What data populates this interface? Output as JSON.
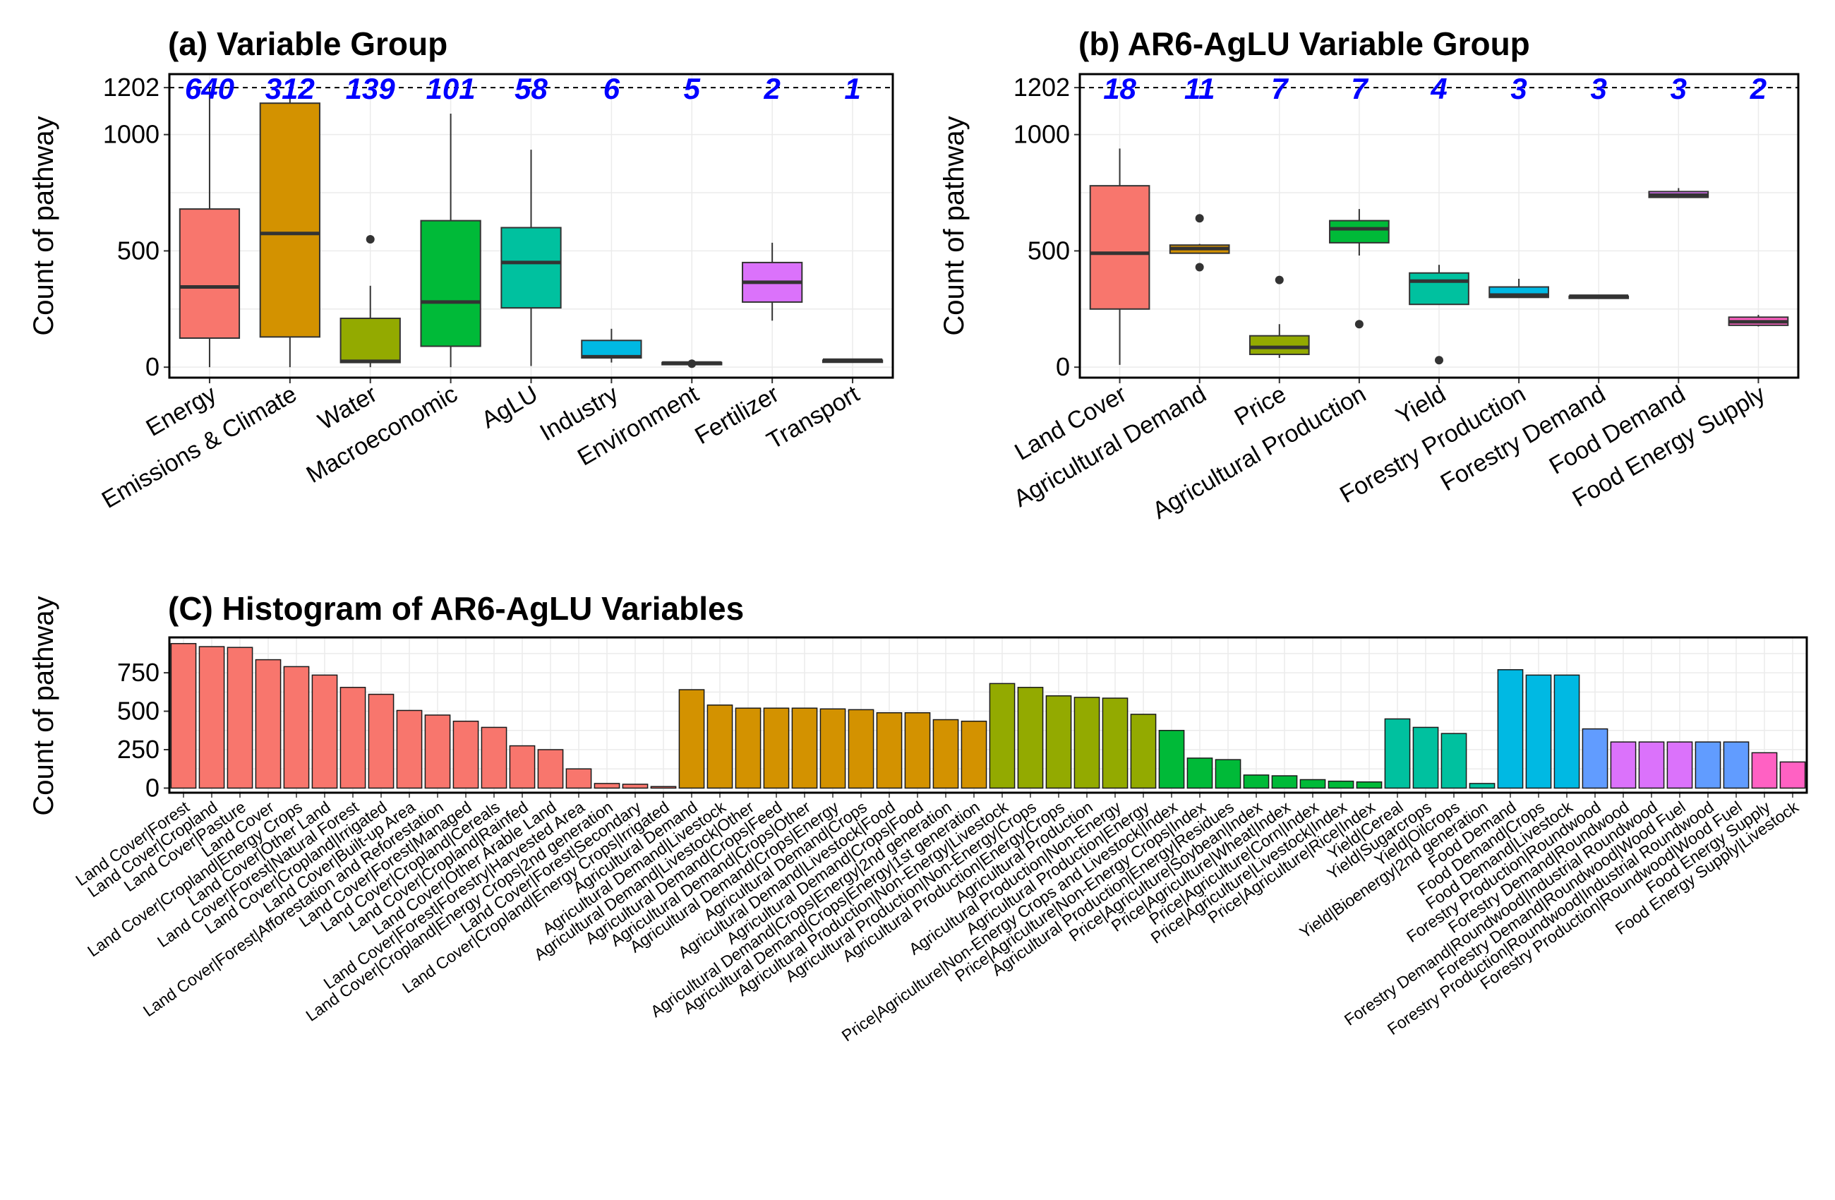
{
  "chart_data": [
    {
      "id": "a",
      "type": "box",
      "title": "(a) Variable Group",
      "ylabel": "Count of pathway",
      "ylim": [
        -45,
        1260
      ],
      "yticks": [
        0,
        500,
        1000,
        1202
      ],
      "reference_line": 1202,
      "categories": [
        "Energy",
        "Emissions & Climate",
        "Water",
        "Macroeconomic",
        "AgLU",
        "Industry",
        "Environment",
        "Fertilizer",
        "Transport"
      ],
      "counts": [
        "640",
        "312",
        "139",
        "101",
        "58",
        "6",
        "5",
        "2",
        "1"
      ],
      "colors": [
        "#F8766D",
        "#D39200",
        "#93AA00",
        "#00BA38",
        "#00C19F",
        "#00B9E3",
        "#619CFF",
        "#DB72FB",
        "#FF61C3"
      ],
      "boxes": [
        {
          "whisker_low": 0,
          "q1": 125,
          "median": 345,
          "q3": 680,
          "whisker_high": 1202,
          "outliers": []
        },
        {
          "whisker_low": 0,
          "q1": 130,
          "median": 575,
          "q3": 1135,
          "whisker_high": 1202,
          "outliers": []
        },
        {
          "whisker_low": 0,
          "q1": 20,
          "median": 25,
          "q3": 210,
          "whisker_high": 350,
          "outliers": [
            550
          ]
        },
        {
          "whisker_low": 0,
          "q1": 90,
          "median": 280,
          "q3": 630,
          "whisker_high": 1090,
          "outliers": []
        },
        {
          "whisker_low": 5,
          "q1": 255,
          "median": 450,
          "q3": 600,
          "whisker_high": 935,
          "outliers": []
        },
        {
          "whisker_low": 20,
          "q1": 40,
          "median": 45,
          "q3": 115,
          "whisker_high": 165,
          "outliers": []
        },
        {
          "whisker_low": 10,
          "q1": 15,
          "median": 18,
          "q3": 20,
          "whisker_high": 22,
          "outliers": [
            15
          ]
        },
        {
          "whisker_low": 200,
          "q1": 280,
          "median": 365,
          "q3": 450,
          "whisker_high": 535,
          "outliers": []
        },
        {
          "whisker_low": 30,
          "q1": 30,
          "median": 30,
          "q3": 30,
          "whisker_high": 30,
          "outliers": []
        }
      ]
    },
    {
      "id": "b",
      "type": "box",
      "title": "(b) AR6-AgLU Variable Group",
      "ylabel": "Count of pathway",
      "ylim": [
        -45,
        1260
      ],
      "yticks": [
        0,
        500,
        1000,
        1202
      ],
      "reference_line": 1202,
      "categories": [
        "Land Cover",
        "Agricultural Demand",
        "Price",
        "Agricultural Production",
        "Yield",
        "Forestry Production",
        "Forestry Demand",
        "Food Demand",
        "Food Energy Supply"
      ],
      "counts": [
        "18",
        "11",
        "7",
        "7",
        "4",
        "3",
        "3",
        "3",
        "2"
      ],
      "colors": [
        "#F8766D",
        "#D39200",
        "#93AA00",
        "#00BA38",
        "#00C19F",
        "#00B9E3",
        "#619CFF",
        "#DB72FB",
        "#FF61C3"
      ],
      "boxes": [
        {
          "whisker_low": 10,
          "q1": 250,
          "median": 490,
          "q3": 780,
          "whisker_high": 940,
          "outliers": []
        },
        {
          "whisker_low": 490,
          "q1": 490,
          "median": 510,
          "q3": 525,
          "whisker_high": 530,
          "outliers": [
            640,
            430
          ]
        },
        {
          "whisker_low": 40,
          "q1": 55,
          "median": 85,
          "q3": 135,
          "whisker_high": 185,
          "outliers": [
            375
          ]
        },
        {
          "whisker_low": 480,
          "q1": 535,
          "median": 595,
          "q3": 630,
          "whisker_high": 680,
          "outliers": [
            185
          ]
        },
        {
          "whisker_low": 270,
          "q1": 270,
          "median": 370,
          "q3": 405,
          "whisker_high": 440,
          "outliers": [
            30
          ]
        },
        {
          "whisker_low": 300,
          "q1": 300,
          "median": 310,
          "q3": 345,
          "whisker_high": 380,
          "outliers": []
        },
        {
          "whisker_low": 305,
          "q1": 305,
          "median": 305,
          "q3": 305,
          "whisker_high": 305,
          "outliers": []
        },
        {
          "whisker_low": 730,
          "q1": 730,
          "median": 740,
          "q3": 755,
          "whisker_high": 770,
          "outliers": []
        },
        {
          "whisker_low": 175,
          "q1": 180,
          "median": 195,
          "q3": 215,
          "whisker_high": 225,
          "outliers": []
        }
      ]
    },
    {
      "id": "c",
      "type": "bar",
      "title": "(C) Histogram of AR6-AgLU Variables",
      "ylabel": "Count of pathway",
      "ylim": [
        -30,
        980
      ],
      "yticks": [
        0,
        250,
        500,
        750
      ],
      "categories": [
        "Land Cover|Forest",
        "Land Cover|Cropland",
        "Land Cover|Pasture",
        "Land Cover",
        "Land Cover|Cropland|Energy Crops",
        "Land Cover|Other Land",
        "Land Cover|Forest|Natural Forest",
        "Land Cover|Cropland|Irrigated",
        "Land Cover|Built-up Area",
        "Land Cover|Forest|Afforestation and Reforestation",
        "Land Cover|Forest|Managed",
        "Land Cover|Cropland|Cereals",
        "Land Cover|Cropland|Rainfed",
        "Land Cover|Other Arable Land",
        "Land Cover|Forest|Forestry|Harvested Area",
        "Land Cover|Cropland|Energy Crops|2nd generation",
        "Land Cover|Forest|Secondary",
        "Land Cover|Cropland|Energy Crops|Irrigated",
        "Agricultural Demand",
        "Agricultural Demand|Livestock",
        "Agricultural Demand|Livestock|Other",
        "Agricultural Demand|Crops|Feed",
        "Agricultural Demand|Crops|Other",
        "Agricultural Demand|Crops|Energy",
        "Agricultural Demand|Crops",
        "Agricultural Demand|Livestock|Food",
        "Agricultural Demand|Crops|Food",
        "Agricultural Demand|Crops|Energy|2nd generation",
        "Agricultural Demand|Crops|Energy|1st generation",
        "Agricultural Production|Non-Energy|Livestock",
        "Agricultural Production|Non-Energy|Crops",
        "Agricultural Production|Energy|Crops",
        "Agricultural Production",
        "Agricultural Production|Non-Energy",
        "Agricultural Production|Energy",
        "Price|Agriculture|Non-Energy Crops and Livestock|Index",
        "Price|Agriculture|Non-Energy Crops|Index",
        "Agricultural Production|Energy|Residues",
        "Price|Agriculture|Soybean|Index",
        "Price|Agriculture|Wheat|Index",
        "Price|Agriculture|Corn|Index",
        "Price|Agriculture|Livestock|Index",
        "Price|Agriculture|Rice|Index",
        "Yield|Cereal",
        "Yield|Sugarcrops",
        "Yield|Oilcrops",
        "Yield|Bioenergy|2nd generation",
        "Food Demand",
        "Food Demand|Crops",
        "Food Demand|Livestock",
        "Forestry Production|Roundwood",
        "Forestry Demand|Roundwood",
        "Forestry Demand|Roundwood|Industrial Roundwood",
        "Forestry Demand|Roundwood|Wood Fuel",
        "Forestry Production|Roundwood|Industrial Roundwood",
        "Forestry Production|Roundwood|Wood Fuel",
        "Food Energy Supply",
        "Food Energy Supply|Livestock"
      ],
      "values": [
        940,
        920,
        915,
        835,
        790,
        735,
        655,
        610,
        505,
        475,
        435,
        395,
        275,
        250,
        125,
        30,
        25,
        10,
        640,
        540,
        520,
        520,
        520,
        515,
        510,
        490,
        490,
        445,
        435,
        680,
        655,
        600,
        590,
        585,
        480,
        375,
        195,
        185,
        85,
        80,
        55,
        45,
        40,
        450,
        395,
        355,
        30,
        770,
        735,
        735,
        385,
        300,
        300,
        300,
        300,
        300,
        230,
        170
      ],
      "colors": [
        "#F8766D",
        "#F8766D",
        "#F8766D",
        "#F8766D",
        "#F8766D",
        "#F8766D",
        "#F8766D",
        "#F8766D",
        "#F8766D",
        "#F8766D",
        "#F8766D",
        "#F8766D",
        "#F8766D",
        "#F8766D",
        "#F8766D",
        "#F8766D",
        "#F8766D",
        "#F8766D",
        "#D39200",
        "#D39200",
        "#D39200",
        "#D39200",
        "#D39200",
        "#D39200",
        "#D39200",
        "#D39200",
        "#D39200",
        "#D39200",
        "#D39200",
        "#93AA00",
        "#93AA00",
        "#93AA00",
        "#93AA00",
        "#93AA00",
        "#93AA00",
        "#00BA38",
        "#00BA38",
        "#00BA38",
        "#00BA38",
        "#00BA38",
        "#00BA38",
        "#00BA38",
        "#00BA38",
        "#00C19F",
        "#00C19F",
        "#00C19F",
        "#00C19F",
        "#00B9E3",
        "#00B9E3",
        "#00B9E3",
        "#619CFF",
        "#DB72FB",
        "#DB72FB",
        "#DB72FB",
        "#619CFF",
        "#619CFF",
        "#FF61C3",
        "#FF61C3"
      ]
    }
  ]
}
